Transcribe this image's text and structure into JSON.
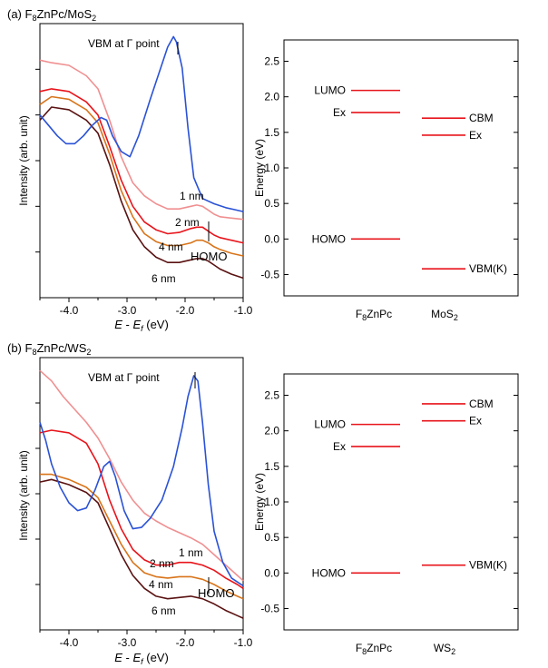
{
  "chart_data": [
    {
      "type": "line",
      "panel_label": "(a) F",
      "panel_label_sub": "8",
      "panel_label_rest": "ZnPc/MoS",
      "panel_label_sub2": "2",
      "xlabel_E": "E",
      "xlabel_minus": " - ",
      "xlabel_Ef": "E",
      "xlabel_f": "f",
      "xlabel_unit": " (eV)",
      "ylabel": "Intensity (arb. unit)",
      "xlim": [
        -4.5,
        -1.0
      ],
      "xticks": [
        "-4.0",
        "-3.0",
        "-2.0",
        "-1.0"
      ],
      "annotations": {
        "vbm": "VBM at Γ point",
        "homo": "HOMO"
      },
      "series": [
        {
          "name": "1 nm",
          "color": "#f08f90",
          "x": [
            -4.5,
            -4.3,
            -4.0,
            -3.7,
            -3.5,
            -3.3,
            -3.1,
            -2.9,
            -2.7,
            -2.5,
            -2.3,
            -2.1,
            -1.9,
            -1.8,
            -1.7,
            -1.6,
            -1.5,
            -1.4,
            -1.2,
            -1.0
          ],
          "y": [
            9.1,
            9.0,
            8.9,
            8.5,
            8.0,
            6.8,
            5.4,
            4.4,
            3.9,
            3.6,
            3.4,
            3.4,
            3.5,
            3.55,
            3.5,
            3.35,
            3.2,
            3.1,
            3.05,
            3.0
          ]
        },
        {
          "name": "2 nm",
          "color": "#e8141b",
          "x": [
            -4.5,
            -4.3,
            -4.0,
            -3.7,
            -3.5,
            -3.3,
            -3.1,
            -2.9,
            -2.7,
            -2.5,
            -2.3,
            -2.1,
            -1.9,
            -1.8,
            -1.7,
            -1.6,
            -1.5,
            -1.4,
            -1.2,
            -1.0
          ],
          "y": [
            7.9,
            8.0,
            7.9,
            7.5,
            7.0,
            5.8,
            4.5,
            3.5,
            2.9,
            2.6,
            2.45,
            2.5,
            2.65,
            2.7,
            2.7,
            2.55,
            2.4,
            2.3,
            2.2,
            2.1
          ]
        },
        {
          "name": "4 nm",
          "color": "#d8741a",
          "x": [
            -4.5,
            -4.3,
            -4.0,
            -3.7,
            -3.5,
            -3.3,
            -3.1,
            -2.9,
            -2.7,
            -2.5,
            -2.3,
            -2.1,
            -1.9,
            -1.8,
            -1.7,
            -1.6,
            -1.5,
            -1.4,
            -1.2,
            -1.0
          ],
          "y": [
            7.4,
            7.7,
            7.6,
            7.2,
            6.7,
            5.5,
            4.1,
            3.1,
            2.45,
            2.15,
            2.0,
            2.0,
            2.1,
            2.2,
            2.2,
            2.1,
            1.95,
            1.85,
            1.7,
            1.6
          ]
        },
        {
          "name": "6 nm",
          "color": "#5a1212",
          "x": [
            -4.5,
            -4.3,
            -4.0,
            -3.7,
            -3.5,
            -3.3,
            -3.1,
            -2.9,
            -2.7,
            -2.5,
            -2.3,
            -2.1,
            -1.9,
            -1.8,
            -1.7,
            -1.6,
            -1.5,
            -1.4,
            -1.2,
            -1.0
          ],
          "y": [
            6.8,
            7.3,
            7.2,
            6.8,
            6.3,
            5.1,
            3.7,
            2.6,
            1.95,
            1.55,
            1.35,
            1.35,
            1.45,
            1.5,
            1.5,
            1.4,
            1.25,
            1.1,
            0.9,
            0.75
          ]
        },
        {
          "name": "MoS2",
          "color": "#2a52d6",
          "x": [
            -4.5,
            -4.35,
            -4.2,
            -4.05,
            -3.9,
            -3.75,
            -3.6,
            -3.45,
            -3.35,
            -3.25,
            -3.1,
            -2.95,
            -2.8,
            -2.6,
            -2.45,
            -2.3,
            -2.2,
            -2.15,
            -2.05,
            -1.95,
            -1.85,
            -1.7,
            -1.5,
            -1.3,
            -1.0
          ],
          "y": [
            7.0,
            6.6,
            6.2,
            5.9,
            5.9,
            6.2,
            6.6,
            6.9,
            6.8,
            6.2,
            5.6,
            5.4,
            6.2,
            7.6,
            8.6,
            9.6,
            10.0,
            9.8,
            8.8,
            6.5,
            4.6,
            3.8,
            3.6,
            3.45,
            3.3
          ]
        }
      ],
      "ylim": [
        0,
        10.5
      ],
      "grid": false
    },
    {
      "type": "level-diagram",
      "ylabel": "Energy (eV)",
      "ylim": [
        -0.8,
        2.8
      ],
      "yticks": [
        "-0.5",
        "0.0",
        "0.5",
        "1.0",
        "1.5",
        "2.0",
        "2.5"
      ],
      "x_categories": [
        {
          "main": "F",
          "sub": "8",
          "rest": "ZnPc"
        },
        {
          "main": "MoS",
          "sub": "2",
          "rest": ""
        }
      ],
      "levels": [
        {
          "label": "LUMO",
          "column": 0,
          "value": 2.09,
          "side": "left"
        },
        {
          "label": "Ex",
          "column": 0,
          "value": 1.78,
          "side": "left"
        },
        {
          "label": "HOMO",
          "column": 0,
          "value": 0.0,
          "side": "left"
        },
        {
          "label": "CBM",
          "column": 1,
          "value": 1.7,
          "side": "right"
        },
        {
          "label": "Ex",
          "column": 1,
          "value": 1.46,
          "side": "right"
        },
        {
          "label": "VBM(K)",
          "column": 1,
          "value": -0.42,
          "side": "right"
        }
      ]
    },
    {
      "type": "line",
      "panel_label": "(b) F",
      "panel_label_sub": "8",
      "panel_label_rest": "ZnPc/WS",
      "panel_label_sub2": "2",
      "xlabel_E": "E",
      "xlabel_minus": " - ",
      "xlabel_Ef": "E",
      "xlabel_f": "f",
      "xlabel_unit": " (eV)",
      "ylabel": "Intensity (arb. unit)",
      "xlim": [
        -4.5,
        -1.0
      ],
      "xticks": [
        "-4.0",
        "-3.0",
        "-2.0",
        "-1.0"
      ],
      "annotations": {
        "vbm": "VBM at Γ point",
        "homo": "HOMO"
      },
      "series": [
        {
          "name": "1 nm",
          "color": "#f08f90",
          "x": [
            -4.5,
            -4.3,
            -4.1,
            -3.9,
            -3.7,
            -3.5,
            -3.3,
            -3.1,
            -2.9,
            -2.7,
            -2.5,
            -2.3,
            -2.1,
            -1.9,
            -1.7,
            -1.5,
            -1.3,
            -1.1,
            -1.0
          ],
          "y": [
            10.0,
            9.6,
            9.0,
            8.5,
            8.0,
            7.4,
            6.6,
            5.7,
            5.0,
            4.5,
            4.2,
            3.95,
            3.75,
            3.55,
            3.3,
            2.9,
            2.5,
            2.1,
            1.9
          ]
        },
        {
          "name": "2 nm",
          "color": "#e8141b",
          "x": [
            -4.5,
            -4.3,
            -4.0,
            -3.7,
            -3.5,
            -3.3,
            -3.1,
            -2.9,
            -2.7,
            -2.5,
            -2.3,
            -2.1,
            -1.9,
            -1.7,
            -1.5,
            -1.3,
            -1.1,
            -1.0
          ],
          "y": [
            7.6,
            7.7,
            7.6,
            7.2,
            6.4,
            5.0,
            3.9,
            3.1,
            2.7,
            2.5,
            2.5,
            2.6,
            2.6,
            2.5,
            2.3,
            2.0,
            1.75,
            1.6
          ]
        },
        {
          "name": "4 nm",
          "color": "#d8741a",
          "x": [
            -4.5,
            -4.3,
            -4.0,
            -3.7,
            -3.5,
            -3.3,
            -3.1,
            -2.9,
            -2.7,
            -2.5,
            -2.3,
            -2.1,
            -1.9,
            -1.7,
            -1.5,
            -1.3,
            -1.1,
            -1.0
          ],
          "y": [
            6.0,
            6.0,
            5.8,
            5.5,
            5.1,
            4.2,
            3.3,
            2.6,
            2.2,
            2.05,
            2.0,
            2.05,
            2.05,
            1.95,
            1.75,
            1.5,
            1.3,
            1.2
          ]
        },
        {
          "name": "6 nm",
          "color": "#5a1212",
          "x": [
            -4.5,
            -4.3,
            -4.0,
            -3.7,
            -3.5,
            -3.3,
            -3.1,
            -2.9,
            -2.7,
            -2.5,
            -2.3,
            -2.1,
            -1.9,
            -1.7,
            -1.5,
            -1.3,
            -1.1,
            -1.0
          ],
          "y": [
            5.7,
            5.8,
            5.6,
            5.3,
            4.9,
            3.9,
            2.9,
            2.1,
            1.6,
            1.3,
            1.2,
            1.25,
            1.3,
            1.2,
            1.0,
            0.75,
            0.55,
            0.45
          ]
        },
        {
          "name": "WS2",
          "color": "#2a52d6",
          "x": [
            -4.5,
            -4.4,
            -4.3,
            -4.15,
            -4.0,
            -3.85,
            -3.7,
            -3.55,
            -3.4,
            -3.3,
            -3.2,
            -3.05,
            -2.9,
            -2.75,
            -2.6,
            -2.4,
            -2.2,
            -2.05,
            -1.95,
            -1.85,
            -1.78,
            -1.7,
            -1.6,
            -1.5,
            -1.35,
            -1.2,
            -1.0
          ],
          "y": [
            8.0,
            7.3,
            6.4,
            5.5,
            4.9,
            4.6,
            4.7,
            5.4,
            6.3,
            6.5,
            5.9,
            4.6,
            3.9,
            3.95,
            4.3,
            5.0,
            6.3,
            7.8,
            9.0,
            9.8,
            9.6,
            8.0,
            5.6,
            3.8,
            2.6,
            2.0,
            1.7
          ]
        }
      ],
      "ylim": [
        0,
        10.5
      ],
      "grid": false
    },
    {
      "type": "level-diagram",
      "ylabel": "Energy (eV)",
      "ylim": [
        -0.8,
        2.8
      ],
      "yticks": [
        "-0.5",
        "0.0",
        "0.5",
        "1.0",
        "1.5",
        "2.0",
        "2.5"
      ],
      "x_categories": [
        {
          "main": "F",
          "sub": "8",
          "rest": "ZnPc"
        },
        {
          "main": "WS",
          "sub": "2",
          "rest": ""
        }
      ],
      "levels": [
        {
          "label": "LUMO",
          "column": 0,
          "value": 2.09,
          "side": "left"
        },
        {
          "label": "Ex",
          "column": 0,
          "value": 1.78,
          "side": "left"
        },
        {
          "label": "HOMO",
          "column": 0,
          "value": 0.0,
          "side": "left"
        },
        {
          "label": "CBM",
          "column": 1,
          "value": 2.38,
          "side": "right"
        },
        {
          "label": "Ex",
          "column": 1,
          "value": 2.14,
          "side": "right"
        },
        {
          "label": "VBM(K)",
          "column": 1,
          "value": 0.11,
          "side": "right"
        }
      ]
    }
  ]
}
